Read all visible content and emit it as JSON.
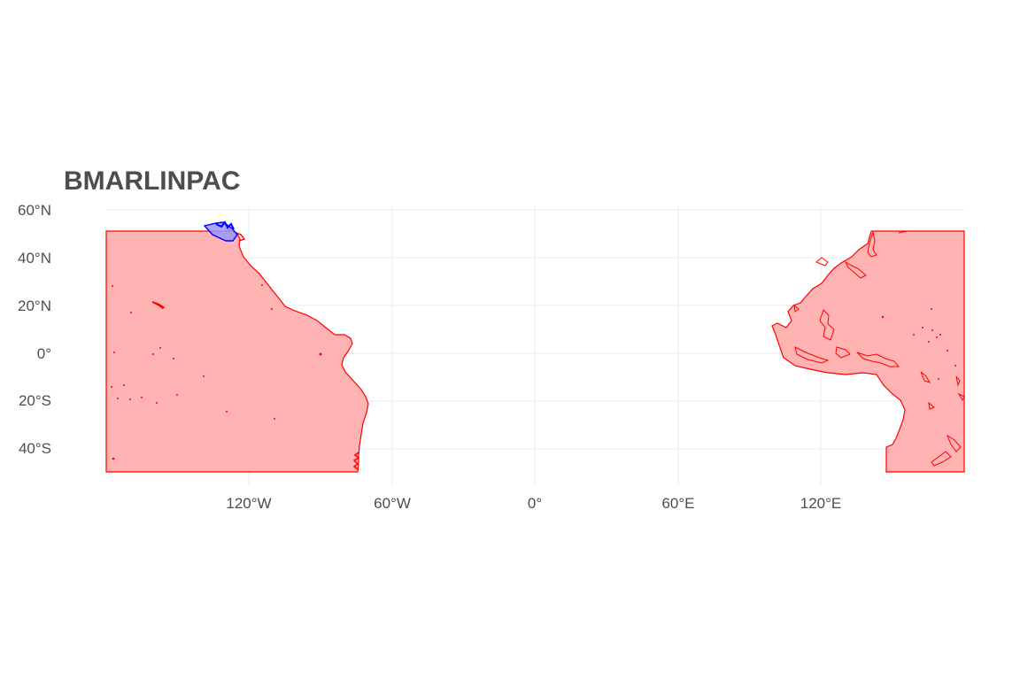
{
  "title": "BMARLINPAC",
  "y_axis_labels": [
    "60°N",
    "40°N",
    "20°N",
    "0°",
    "20°S",
    "40°S"
  ],
  "x_axis_labels": [
    "120°W",
    "60°W",
    "0°",
    "60°E",
    "120°E"
  ],
  "colors": {
    "region_fill": "#ffb3b3",
    "region_stroke": "#ff0000",
    "small_area_fill": "#9999ff",
    "small_area_stroke": "#0000ff",
    "gridline": "#ebebeb",
    "text": "#4d4d4d"
  }
}
